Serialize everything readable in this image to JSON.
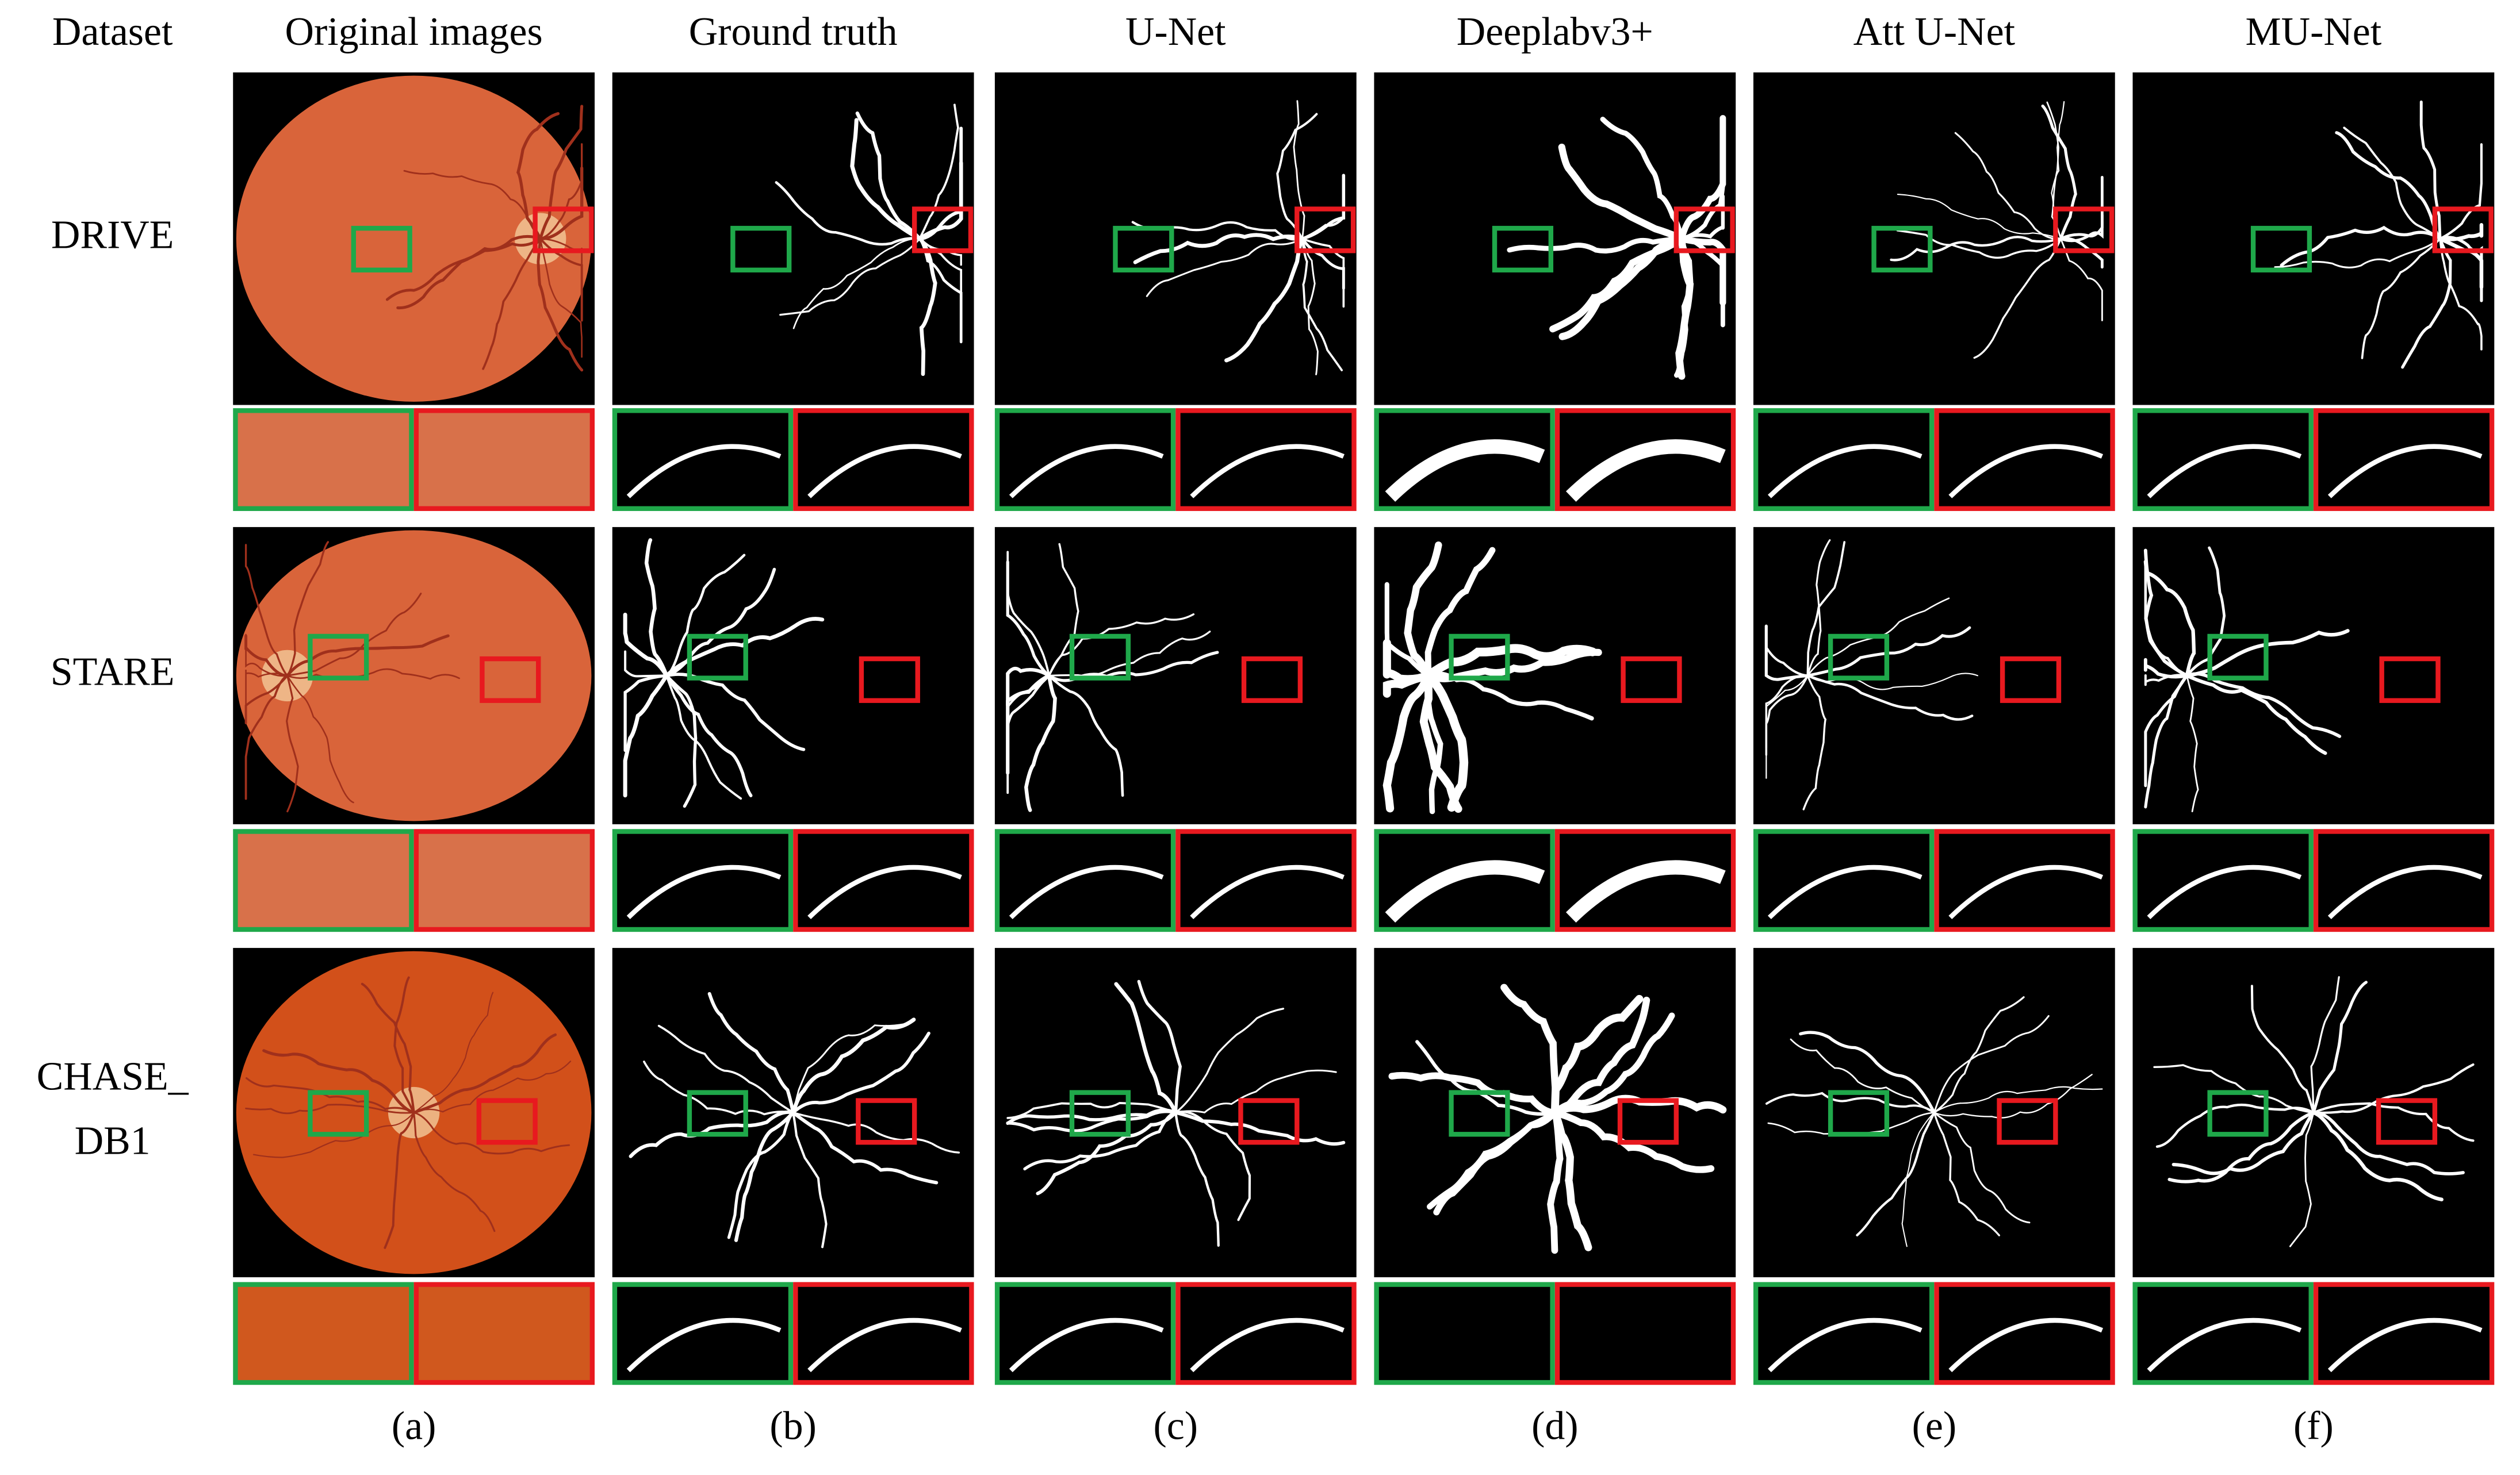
{
  "header": {
    "columns": [
      "Dataset",
      "Original images",
      "Ground truth",
      "U-Net",
      "Deeplabv3+",
      "Att U-Net",
      "MU-Net"
    ]
  },
  "rows": [
    {
      "label": [
        "DRIVE"
      ]
    },
    {
      "label": [
        "STARE"
      ]
    },
    {
      "label": [
        "CHASE_",
        "DB1"
      ]
    }
  ],
  "panel_labels": [
    "(a)",
    "(b)",
    "(c)",
    "(d)",
    "(e)",
    "(f)"
  ]
}
